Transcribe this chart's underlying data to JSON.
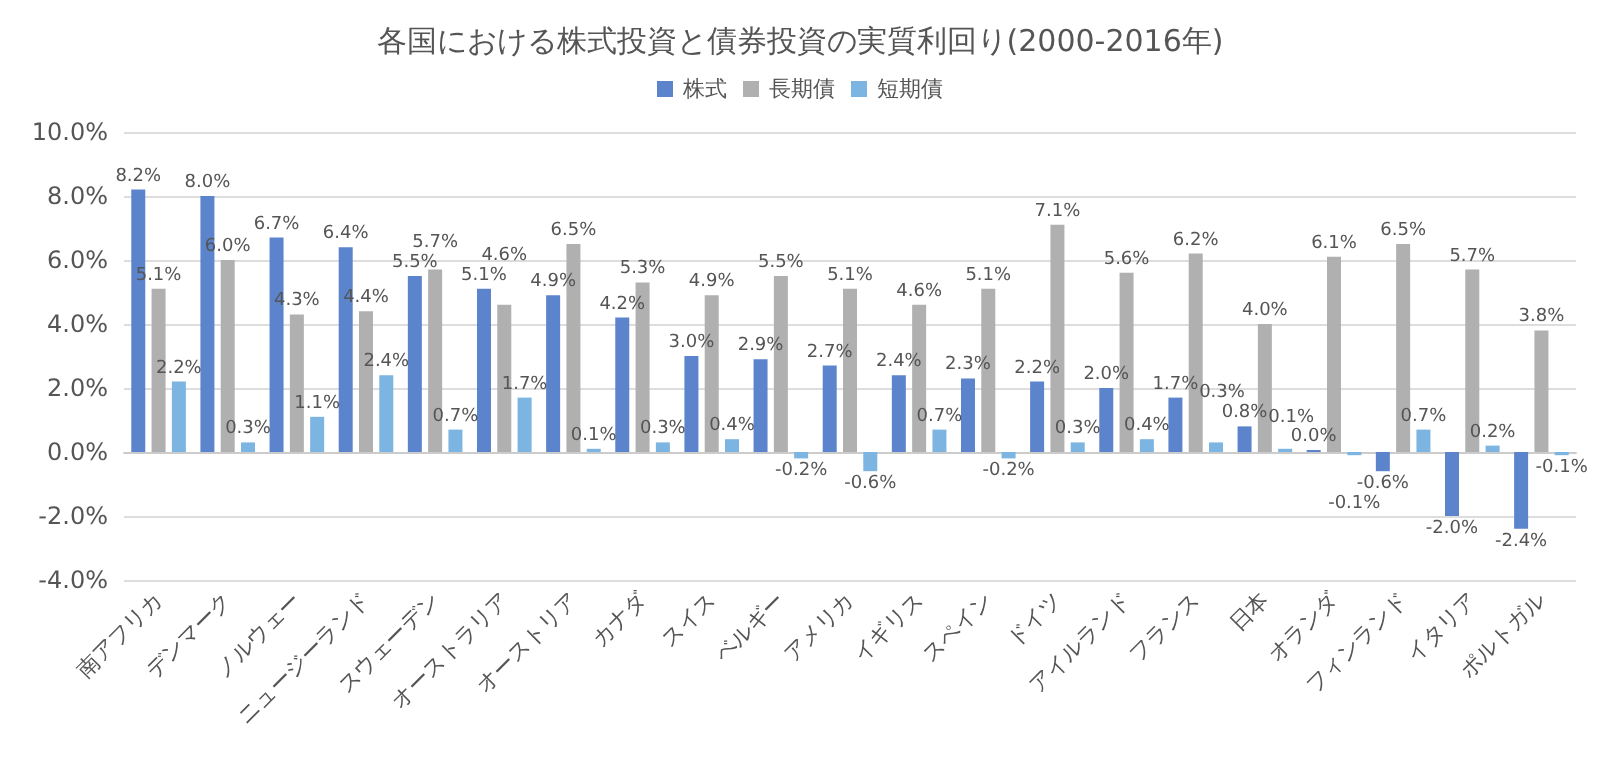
{
  "chart_data": {
    "type": "bar",
    "title": "各国における株式投資と債券投資の実質利回り(2000-2016年)",
    "categories": [
      "南アフリカ",
      "デンマーク",
      "ノルウェー",
      "ニュージーランド",
      "スウェーデン",
      "オーストラリア",
      "オーストリア",
      "カナダ",
      "スイス",
      "ベルギー",
      "アメリカ",
      "イギリス",
      "スペイン",
      "ドイツ",
      "アイルランド",
      "フランス",
      "日本",
      "オランダ",
      "フィンランド",
      "イタリア",
      "ポルトガル"
    ],
    "series": [
      {
        "name": "株式",
        "color": "#5b84cc",
        "values": [
          8.2,
          8.0,
          6.7,
          6.4,
          5.5,
          5.1,
          4.9,
          4.2,
          3.0,
          2.9,
          2.7,
          2.4,
          2.3,
          2.2,
          2.0,
          1.7,
          0.8,
          0.0,
          -0.6,
          -2.0,
          -2.4
        ],
        "value_labels": [
          "8.2%",
          "8.0%",
          "6.7%",
          "6.4%",
          "5.5%",
          "5.1%",
          "4.9%",
          "4.2%",
          "3.0%",
          "2.9%",
          "2.7%",
          "2.4%",
          "2.3%",
          "2.2%",
          "2.0%",
          "1.7%",
          "0.8%",
          "0.0%",
          "-0.6%",
          "-2.0%",
          "-2.4%"
        ]
      },
      {
        "name": "長期債",
        "color": "#b0b0b0",
        "values": [
          5.1,
          6.0,
          4.3,
          4.4,
          5.7,
          4.6,
          6.5,
          5.3,
          4.9,
          5.5,
          5.1,
          4.6,
          5.1,
          7.1,
          5.6,
          6.2,
          4.0,
          6.1,
          6.5,
          5.7,
          3.8
        ],
        "value_labels": [
          "5.1%",
          "6.0%",
          "4.3%",
          "4.4%",
          "5.7%",
          "4.6%",
          "6.5%",
          "5.3%",
          "4.9%",
          "5.5%",
          "5.1%",
          "4.6%",
          "5.1%",
          "7.1%",
          "5.6%",
          "6.2%",
          "4.0%",
          "6.1%",
          "6.5%",
          "5.7%",
          "3.8%"
        ]
      },
      {
        "name": "短期債",
        "color": "#7cb4e2",
        "values": [
          2.2,
          0.3,
          1.1,
          2.4,
          0.7,
          1.7,
          0.1,
          0.3,
          0.4,
          -0.2,
          -0.6,
          0.7,
          -0.2,
          0.3,
          0.4,
          0.3,
          0.1,
          -0.1,
          0.7,
          0.2,
          -0.1
        ],
        "value_labels": [
          "2.2%",
          "0.3%",
          "1.1%",
          "2.4%",
          "0.7%",
          "1.7%",
          "0.1%",
          "0.3%",
          "0.4%",
          "-0.2%",
          "-0.6%",
          "0.7%",
          "-0.2%",
          "0.3%",
          "0.4%",
          "0.3%",
          "0.1%",
          "-0.1%",
          "0.7%",
          "0.2%",
          "-0.1%"
        ]
      }
    ],
    "ylim": [
      -4,
      10
    ],
    "yticks": [
      {
        "value": -4,
        "label": "-4.0%"
      },
      {
        "value": -2,
        "label": "-2.0%"
      },
      {
        "value": 0,
        "label": "0.0%"
      },
      {
        "value": 2,
        "label": "2.0%"
      },
      {
        "value": 4,
        "label": "4.0%"
      },
      {
        "value": 6,
        "label": "6.0%"
      },
      {
        "value": 8,
        "label": "8.0%"
      },
      {
        "value": 10,
        "label": "10.0%"
      }
    ],
    "grid": "y",
    "legend": "top"
  }
}
